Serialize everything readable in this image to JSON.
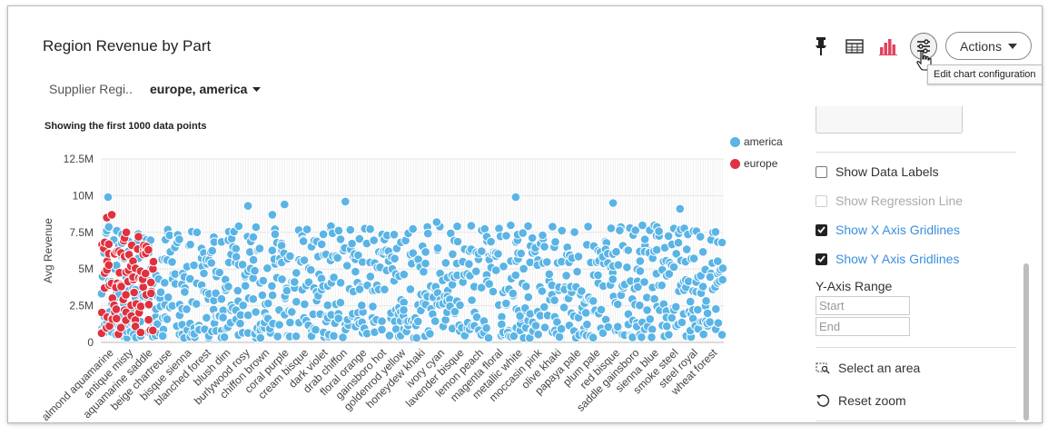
{
  "title": "Region Revenue by Part",
  "toolbar": {
    "icons": [
      "pin-icon",
      "table-icon",
      "bar-chart-icon",
      "chart-config-icon"
    ],
    "actions_label": "Actions",
    "tooltip": "Edit chart configuration"
  },
  "filter": {
    "label": "Supplier Regi..",
    "value": "europe, america"
  },
  "showing_text": "Showing the first 1000 data points",
  "colors": {
    "america": "#5ab4e5",
    "europe": "#e0313f",
    "link": "#3c8fde",
    "pink": "#e0455f"
  },
  "panel": {
    "options": [
      {
        "label": "Show Data Labels",
        "checked": false,
        "disabled": false
      },
      {
        "label": "Show Regression Line",
        "checked": false,
        "disabled": true
      },
      {
        "label": "Show X Axis Gridlines",
        "checked": true,
        "disabled": false
      },
      {
        "label": "Show Y Axis Gridlines",
        "checked": true,
        "disabled": false
      }
    ],
    "y_range_label": "Y-Axis Range",
    "start_placeholder": "Start",
    "end_placeholder": "End",
    "select_area": "Select an area",
    "reset_zoom": "Reset zoom"
  },
  "chart_data": {
    "type": "scatter",
    "title": "",
    "xlabel": "",
    "ylabel": "Avg Revenue",
    "ylim": [
      0,
      12500000
    ],
    "y_ticks": [
      "0",
      "2.5M",
      "5M",
      "7.5M",
      "10M",
      "12.5M"
    ],
    "x_tick_labels": [
      "almond aquamarine",
      "antique misty",
      "aquamarine saddle",
      "beige chartreuse",
      "bisque sienna",
      "blanched forest",
      "blush dim",
      "burlywood rosy",
      "chiffon brown",
      "coral purple",
      "cream bisque",
      "dark violet",
      "drab chiffon",
      "floral orange",
      "gainsboro hot",
      "goldenrod yellow",
      "honeydew khaki",
      "ivory cyan",
      "lavender bisque",
      "lemon peach",
      "magenta floral",
      "metallic white",
      "moccasin pink",
      "olive khaki",
      "papaya pale",
      "plum pale",
      "red bisque",
      "saddle gainsboro",
      "sienna blue",
      "smoke steel",
      "steel royal",
      "wheat forest"
    ],
    "legend": [
      "america",
      "europe"
    ],
    "legend_position": "top-right",
    "grid": {
      "x": true,
      "y": true
    },
    "series": [
      {
        "name": "america",
        "points": "approx. 900 points spread across all parts with Avg Revenue between 0.3M and 10M"
      },
      {
        "name": "europe",
        "points": "approx. 100 points in the first parts (almond aquamarine to blanched forest) with Avg Revenue between 0.5M and 8.7M"
      }
    ]
  }
}
